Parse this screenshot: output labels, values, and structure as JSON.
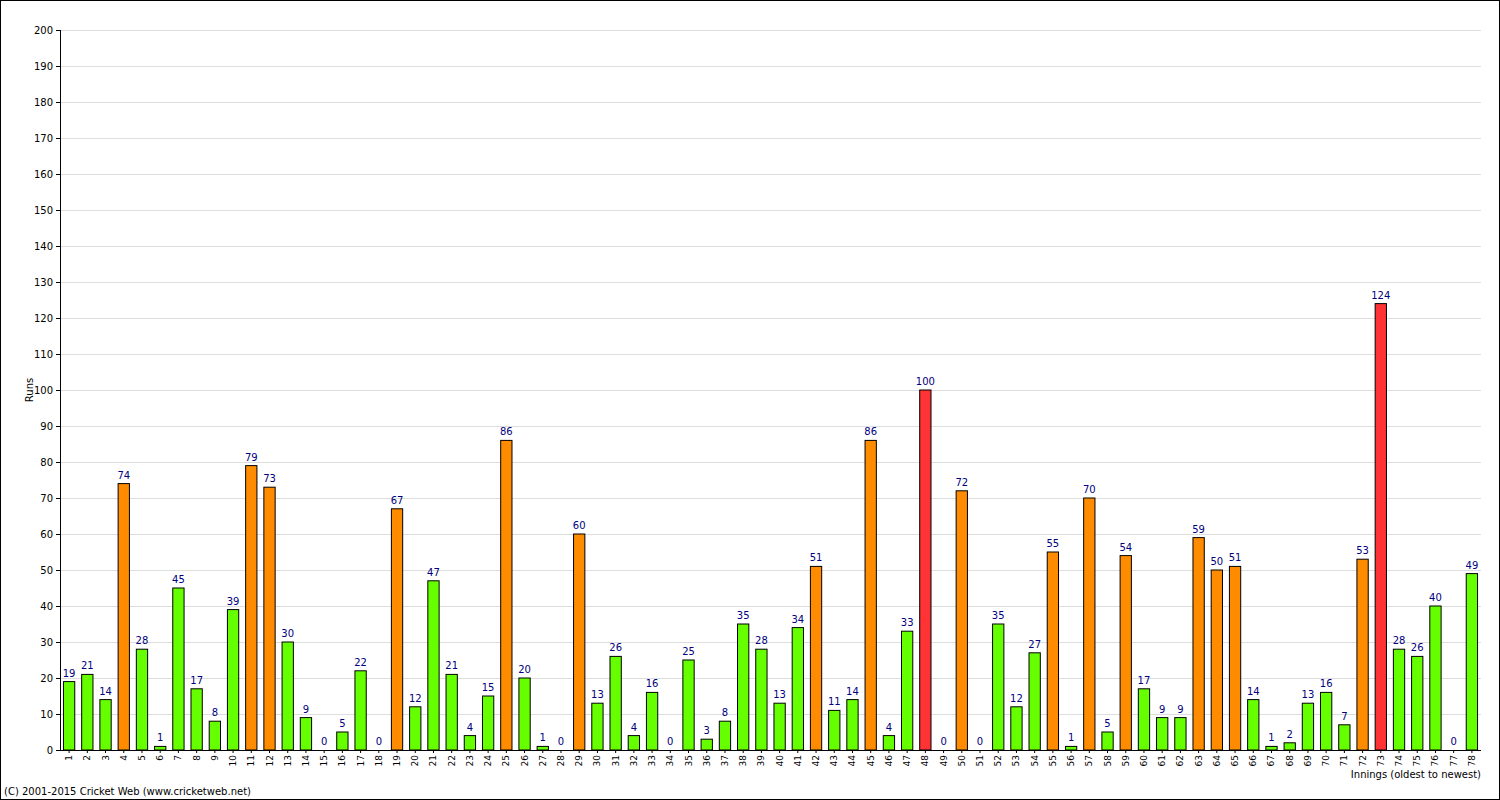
{
  "chart_data": {
    "type": "bar",
    "y_label": "Runs",
    "x_label": "Innings (oldest to newest)",
    "source": "(C) 2001-2015 Cricket Web (www.cricketweb.net)",
    "categories": [
      "1",
      "2",
      "3",
      "4",
      "5",
      "6",
      "7",
      "8",
      "9",
      "10",
      "11",
      "12",
      "13",
      "14",
      "15",
      "16",
      "17",
      "18",
      "19",
      "20",
      "21",
      "22",
      "23",
      "24",
      "25",
      "26",
      "27",
      "28",
      "29",
      "30",
      "31",
      "32",
      "33",
      "34",
      "35",
      "36",
      "37",
      "38",
      "39",
      "40",
      "41",
      "42",
      "43",
      "44",
      "45",
      "46",
      "47",
      "48",
      "49",
      "50",
      "51",
      "52",
      "53",
      "54",
      "55",
      "56",
      "57",
      "58",
      "59",
      "60",
      "61",
      "62",
      "63",
      "64",
      "65",
      "66",
      "67",
      "68",
      "69",
      "70",
      "71",
      "72",
      "73",
      "74",
      "75",
      "76",
      "77",
      "78"
    ],
    "values": [
      19,
      21,
      14,
      74,
      28,
      1,
      45,
      17,
      8,
      39,
      79,
      73,
      30,
      9,
      0,
      5,
      22,
      0,
      67,
      12,
      47,
      21,
      4,
      15,
      86,
      20,
      1,
      0,
      60,
      13,
      26,
      4,
      16,
      0,
      25,
      3,
      8,
      35,
      28,
      13,
      34,
      51,
      11,
      14,
      86,
      4,
      33,
      100,
      0,
      72,
      0,
      35,
      12,
      27,
      55,
      1,
      70,
      5,
      54,
      17,
      9,
      9,
      59,
      50,
      51,
      14,
      1,
      2,
      13,
      16,
      7,
      53,
      124,
      28,
      26,
      40,
      0,
      49
    ],
    "colors": [
      "#66ff00",
      "#66ff00",
      "#66ff00",
      "#ff8c00",
      "#66ff00",
      "#66ff00",
      "#66ff00",
      "#66ff00",
      "#66ff00",
      "#66ff00",
      "#ff8c00",
      "#ff8c00",
      "#66ff00",
      "#66ff00",
      "#66ff00",
      "#66ff00",
      "#66ff00",
      "#66ff00",
      "#ff8c00",
      "#66ff00",
      "#66ff00",
      "#66ff00",
      "#66ff00",
      "#66ff00",
      "#ff8c00",
      "#66ff00",
      "#66ff00",
      "#66ff00",
      "#ff8c00",
      "#66ff00",
      "#66ff00",
      "#66ff00",
      "#66ff00",
      "#66ff00",
      "#66ff00",
      "#66ff00",
      "#66ff00",
      "#66ff00",
      "#66ff00",
      "#66ff00",
      "#66ff00",
      "#ff8c00",
      "#66ff00",
      "#66ff00",
      "#ff8c00",
      "#66ff00",
      "#66ff00",
      "#ff3333",
      "#66ff00",
      "#ff8c00",
      "#66ff00",
      "#66ff00",
      "#66ff00",
      "#66ff00",
      "#ff8c00",
      "#66ff00",
      "#ff8c00",
      "#66ff00",
      "#ff8c00",
      "#66ff00",
      "#66ff00",
      "#66ff00",
      "#ff8c00",
      "#ff8c00",
      "#ff8c00",
      "#66ff00",
      "#66ff00",
      "#66ff00",
      "#66ff00",
      "#66ff00",
      "#66ff00",
      "#ff8c00",
      "#ff3333",
      "#66ff00",
      "#66ff00",
      "#66ff00",
      "#66ff00",
      "#66ff00"
    ],
    "ylim": [
      0,
      200
    ],
    "yticks": [
      0,
      10,
      20,
      30,
      40,
      50,
      60,
      70,
      80,
      90,
      100,
      110,
      120,
      130,
      140,
      150,
      160,
      170,
      180,
      190,
      200
    ],
    "grid": true,
    "data_labels": true
  }
}
